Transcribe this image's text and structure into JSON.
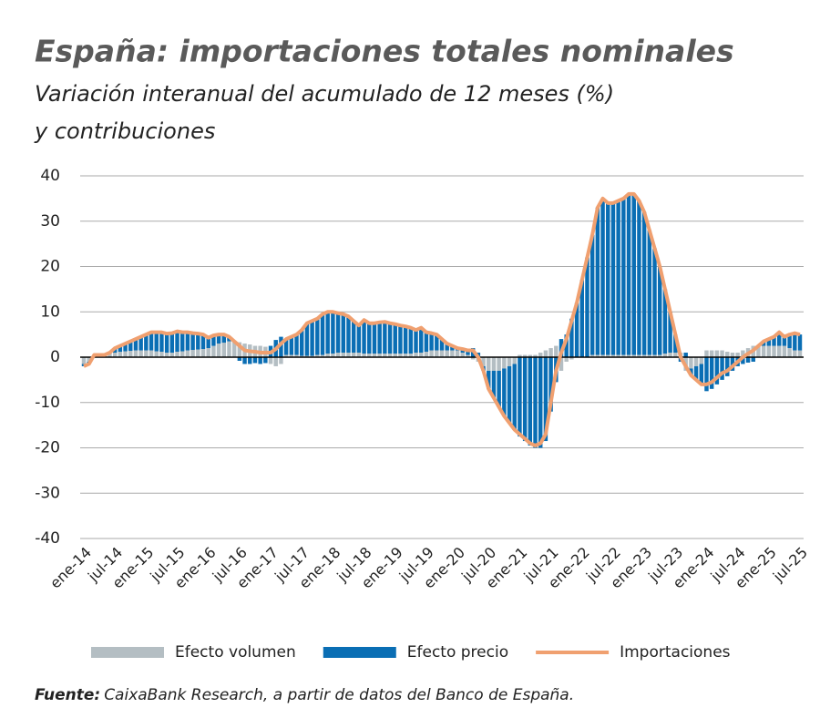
{
  "chart_data": {
    "type": "bar",
    "stacked": true,
    "title": "España: importaciones totales nominales",
    "subtitle": [
      "Variación interanual del acumulado de 12 meses (%)",
      "y contribuciones"
    ],
    "source_label": "Fuente:",
    "source_text": "CaixaBank Research, a partir de datos del Banco de España.",
    "ylim": [
      -40,
      40
    ],
    "yticks": [
      -40,
      -30,
      -20,
      -10,
      0,
      10,
      20,
      30,
      40
    ],
    "grid": true,
    "categories": [
      "ene-14",
      null,
      null,
      null,
      null,
      null,
      "jul-14",
      null,
      null,
      null,
      null,
      null,
      "ene-15",
      null,
      null,
      null,
      null,
      null,
      "jul-15",
      null,
      null,
      null,
      null,
      null,
      "ene-16",
      null,
      null,
      null,
      null,
      null,
      "jul-16",
      null,
      null,
      null,
      null,
      null,
      "ene-17",
      null,
      null,
      null,
      null,
      null,
      "jul-17",
      null,
      null,
      null,
      null,
      null,
      "ene-18",
      null,
      null,
      null,
      null,
      null,
      "jul-18",
      null,
      null,
      null,
      null,
      null,
      "ene-19",
      null,
      null,
      null,
      null,
      null,
      "jul-19",
      null,
      null,
      null,
      null,
      null,
      "ene-20",
      null,
      null,
      null,
      null,
      null,
      "jul-20",
      null,
      null,
      null,
      null,
      null,
      "ene-21",
      null,
      null,
      null,
      null,
      null,
      "jul-21",
      null,
      null,
      null,
      null,
      null,
      "ene-22",
      null,
      null,
      null,
      null,
      null,
      "jul-22",
      null,
      null,
      null,
      null,
      null,
      "ene-23",
      null,
      null,
      null,
      null,
      null,
      "jul-23",
      null,
      null,
      null,
      null,
      null,
      "ene-24",
      null,
      null,
      null,
      null,
      null,
      "jul-24",
      null,
      null,
      null,
      null,
      null,
      "ene-25",
      null,
      null,
      null,
      null,
      null,
      "jul-25"
    ],
    "series": [
      {
        "name": "Efecto volumen",
        "color": "#b4bec3",
        "type": "bar",
        "values": [
          -1.5,
          -1,
          0.5,
          0.5,
          0.5,
          0.8,
          1,
          1.2,
          1.3,
          1.4,
          1.5,
          1.5,
          1.5,
          1.5,
          1.3,
          1.2,
          1,
          1,
          1.2,
          1.3,
          1.5,
          1.6,
          1.7,
          1.8,
          2,
          2.5,
          3,
          3.2,
          3.5,
          3.5,
          3.3,
          3,
          2.8,
          2.5,
          2.5,
          2.3,
          -1.5,
          -2,
          -1.5,
          0.5,
          0.5,
          0.5,
          0.3,
          0.3,
          0.3,
          0.5,
          0.5,
          0.8,
          0.8,
          1,
          1,
          1,
          1,
          1,
          0.8,
          0.8,
          0.8,
          0.8,
          0.8,
          0.8,
          0.8,
          0.8,
          0.8,
          0.8,
          1,
          1,
          1.2,
          1.5,
          1.5,
          1.5,
          1.5,
          1.5,
          1.5,
          1,
          0.5,
          -0.5,
          -1,
          -2,
          -3,
          -3,
          -3,
          -2.5,
          -2,
          -1.5,
          0.5,
          0.5,
          0.5,
          0.5,
          1,
          1.5,
          2,
          2.5,
          -3,
          -1,
          -0.5,
          0,
          0,
          0,
          0.5,
          0.5,
          0.5,
          0.5,
          0.5,
          0.5,
          0.5,
          0.5,
          0.5,
          0.5,
          0.5,
          0.5,
          0.5,
          0.5,
          0.8,
          1,
          1,
          1,
          -3,
          -2.5,
          -2,
          -1.5,
          1.5,
          1.5,
          1.5,
          1.5,
          1.2,
          1,
          1,
          1.5,
          2,
          2.5,
          2.5,
          2.5,
          2.5,
          2.5,
          2.5,
          2.5,
          2,
          1.5,
          1.5
        ]
      },
      {
        "name": "Efecto precio",
        "color": "#0a6eb4",
        "type": "bar",
        "values": [
          -0.5,
          -0.5,
          0,
          0,
          0,
          0.2,
          1,
          1.3,
          1.7,
          2.1,
          2.5,
          3,
          3.5,
          4,
          4.2,
          4.3,
          4.2,
          4.3,
          4.5,
          4.2,
          4,
          3.7,
          3.5,
          3.2,
          2.3,
          2.3,
          2,
          1.8,
          1,
          0,
          -0.8,
          -1.5,
          -1.5,
          -1.3,
          -1.5,
          -1.3,
          2.5,
          3.8,
          4.5,
          3.5,
          4,
          4.5,
          5.7,
          7.2,
          7.7,
          8,
          9,
          9.2,
          9.2,
          8.7,
          8.5,
          8,
          7,
          6,
          7.4,
          6.7,
          6.7,
          6.9,
          7,
          6.7,
          6.5,
          6.2,
          6,
          5.7,
          5,
          5.5,
          4.3,
          3.8,
          3.5,
          2.5,
          1.5,
          1,
          0.5,
          0.8,
          1,
          2,
          1,
          -1,
          -4,
          -6,
          -8,
          -10.5,
          -12.5,
          -14.5,
          -17.5,
          -18.5,
          -19.5,
          -20,
          -20,
          -18.5,
          -12,
          -5.5,
          4,
          5,
          8.5,
          12,
          17,
          22,
          26.5,
          32.5,
          34.5,
          33.5,
          33.5,
          34,
          34.5,
          35.5,
          35.5,
          34,
          31.5,
          27.5,
          23.5,
          19.5,
          14.2,
          9,
          4,
          -1,
          1,
          -1.5,
          -3,
          -4.5,
          -7.5,
          -7,
          -6,
          -5,
          -4.2,
          -3,
          -2,
          -1.5,
          -1.2,
          -1,
          0,
          1,
          1.5,
          2,
          3,
          2,
          3,
          3.8,
          3.5
        ]
      },
      {
        "name": "Importaciones",
        "color": "#f0a070",
        "type": "line",
        "values": [
          -2,
          -1.5,
          0.5,
          0.5,
          0.5,
          1,
          2,
          2.5,
          3,
          3.5,
          4,
          4.5,
          5,
          5.5,
          5.5,
          5.5,
          5.2,
          5.3,
          5.7,
          5.5,
          5.5,
          5.3,
          5.2,
          5,
          4.3,
          4.8,
          5,
          5,
          4.5,
          3.5,
          2.5,
          1.5,
          1.3,
          1.2,
          1,
          1,
          1,
          1.8,
          3,
          4,
          4.5,
          5,
          6,
          7.5,
          8,
          8.5,
          9.5,
          10,
          10,
          9.7,
          9.5,
          9,
          8,
          7,
          8.2,
          7.5,
          7.5,
          7.7,
          7.8,
          7.5,
          7.3,
          7,
          6.8,
          6.5,
          6,
          6.5,
          5.5,
          5.3,
          5,
          4,
          3,
          2.5,
          2,
          1.8,
          1.5,
          1.5,
          0,
          -3,
          -7,
          -9,
          -11,
          -13,
          -14.5,
          -16,
          -17,
          -18,
          -19,
          -19.5,
          -19,
          -17,
          -10,
          -3,
          1,
          4,
          8,
          12,
          17,
          22,
          27,
          33,
          35,
          34,
          34,
          34.5,
          35,
          36,
          36,
          34.5,
          32,
          28,
          24,
          20,
          15,
          10,
          5,
          0,
          -2,
          -4,
          -5,
          -6,
          -6,
          -5.5,
          -4.5,
          -3.5,
          -3,
          -2,
          -1,
          0,
          0.8,
          1.5,
          2.5,
          3.5,
          4,
          4.5,
          5.5,
          4.5,
          5,
          5.3,
          5
        ]
      }
    ]
  }
}
